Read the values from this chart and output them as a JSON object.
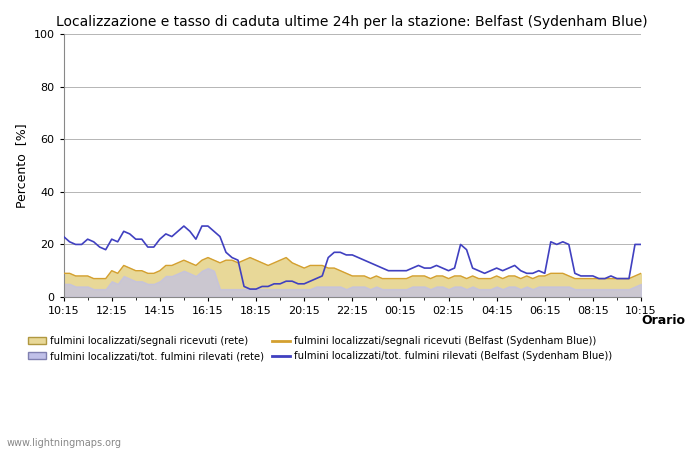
{
  "title": "Localizzazione e tasso di caduta ultime 24h per la stazione: Belfast (Sydenham Blue)",
  "xlabel_right": "Orario",
  "ylabel": "Percento  [%]",
  "xlim": [
    0,
    96
  ],
  "ylim": [
    0,
    100
  ],
  "yticks": [
    0,
    20,
    40,
    60,
    80,
    100
  ],
  "xtick_labels": [
    "10:15",
    "12:15",
    "14:15",
    "16:15",
    "18:15",
    "20:15",
    "22:15",
    "00:15",
    "02:15",
    "04:15",
    "06:15",
    "08:15",
    "10:15"
  ],
  "xtick_positions": [
    0,
    8,
    16,
    24,
    32,
    40,
    48,
    56,
    64,
    72,
    80,
    88,
    96
  ],
  "bg_color": "#ffffff",
  "plot_bg_color": "#ffffff",
  "watermark": "www.lightningmaps.org",
  "fill_net_color": "#e8d898",
  "fill_net_edge": "#c8b870",
  "fill_blue_color": "#c0c0e8",
  "fill_blue_alpha": 0.7,
  "line_net_color": "#d4a030",
  "line_station_color": "#4040c0",
  "grid_color": "#aaaaaa",
  "x": [
    0,
    1,
    2,
    3,
    4,
    5,
    6,
    7,
    8,
    9,
    10,
    11,
    12,
    13,
    14,
    15,
    16,
    17,
    18,
    19,
    20,
    21,
    22,
    23,
    24,
    25,
    26,
    27,
    28,
    29,
    30,
    31,
    32,
    33,
    34,
    35,
    36,
    37,
    38,
    39,
    40,
    41,
    42,
    43,
    44,
    45,
    46,
    47,
    48,
    49,
    50,
    51,
    52,
    53,
    54,
    55,
    56,
    57,
    58,
    59,
    60,
    61,
    62,
    63,
    64,
    65,
    66,
    67,
    68,
    69,
    70,
    71,
    72,
    73,
    74,
    75,
    76,
    77,
    78,
    79,
    80,
    81,
    82,
    83,
    84,
    85,
    86,
    87,
    88,
    89,
    90,
    91,
    92,
    93,
    94,
    95,
    96
  ],
  "y_fill_net": [
    9,
    9,
    8,
    8,
    8,
    7,
    7,
    7,
    10,
    9,
    12,
    11,
    10,
    10,
    9,
    9,
    10,
    12,
    12,
    13,
    14,
    13,
    12,
    14,
    15,
    14,
    13,
    14,
    14,
    13,
    14,
    15,
    14,
    13,
    12,
    13,
    14,
    15,
    13,
    12,
    11,
    12,
    12,
    12,
    11,
    11,
    10,
    9,
    8,
    8,
    8,
    7,
    8,
    7,
    7,
    7,
    7,
    7,
    8,
    8,
    8,
    7,
    8,
    8,
    7,
    8,
    8,
    7,
    8,
    7,
    7,
    7,
    8,
    7,
    8,
    8,
    7,
    8,
    7,
    8,
    8,
    9,
    9,
    9,
    8,
    7,
    7,
    7,
    7,
    7,
    7,
    7,
    7,
    7,
    7,
    8,
    9
  ],
  "y_fill_blue": [
    5,
    5,
    4,
    4,
    4,
    3,
    3,
    3,
    6,
    5,
    8,
    7,
    6,
    6,
    5,
    5,
    6,
    8,
    8,
    9,
    10,
    9,
    8,
    10,
    11,
    10,
    3,
    3,
    3,
    3,
    3,
    3,
    3,
    3,
    3,
    3,
    3,
    3,
    3,
    3,
    3,
    3,
    4,
    4,
    4,
    4,
    4,
    3,
    4,
    4,
    4,
    3,
    4,
    3,
    3,
    3,
    3,
    3,
    4,
    4,
    4,
    3,
    4,
    4,
    3,
    4,
    4,
    3,
    4,
    3,
    3,
    3,
    4,
    3,
    4,
    4,
    3,
    4,
    3,
    4,
    4,
    4,
    4,
    4,
    4,
    3,
    3,
    3,
    3,
    3,
    3,
    3,
    3,
    3,
    3,
    4,
    5
  ],
  "y_line_net": [
    9,
    9,
    8,
    8,
    8,
    7,
    7,
    7,
    10,
    9,
    12,
    11,
    10,
    10,
    9,
    9,
    10,
    12,
    12,
    13,
    14,
    13,
    12,
    14,
    15,
    14,
    13,
    14,
    14,
    13,
    14,
    15,
    14,
    13,
    12,
    13,
    14,
    15,
    13,
    12,
    11,
    12,
    12,
    12,
    11,
    11,
    10,
    9,
    8,
    8,
    8,
    7,
    8,
    7,
    7,
    7,
    7,
    7,
    8,
    8,
    8,
    7,
    8,
    8,
    7,
    8,
    8,
    7,
    8,
    7,
    7,
    7,
    8,
    7,
    8,
    8,
    7,
    8,
    7,
    8,
    8,
    9,
    9,
    9,
    8,
    7,
    7,
    7,
    7,
    7,
    7,
    7,
    7,
    7,
    7,
    8,
    9
  ],
  "y_line_station": [
    23,
    21,
    20,
    20,
    22,
    21,
    19,
    18,
    22,
    21,
    25,
    24,
    22,
    22,
    19,
    19,
    22,
    24,
    23,
    25,
    27,
    25,
    22,
    27,
    27,
    25,
    23,
    17,
    15,
    14,
    4,
    3,
    3,
    4,
    4,
    5,
    5,
    6,
    6,
    5,
    5,
    6,
    7,
    8,
    15,
    17,
    17,
    16,
    16,
    15,
    14,
    13,
    12,
    11,
    10,
    10,
    10,
    10,
    11,
    12,
    11,
    11,
    12,
    11,
    10,
    11,
    20,
    18,
    11,
    10,
    9,
    10,
    11,
    10,
    11,
    12,
    10,
    9,
    9,
    10,
    9,
    21,
    20,
    21,
    20,
    9,
    8,
    8,
    8,
    7,
    7,
    8,
    7,
    7,
    7,
    20,
    20
  ]
}
